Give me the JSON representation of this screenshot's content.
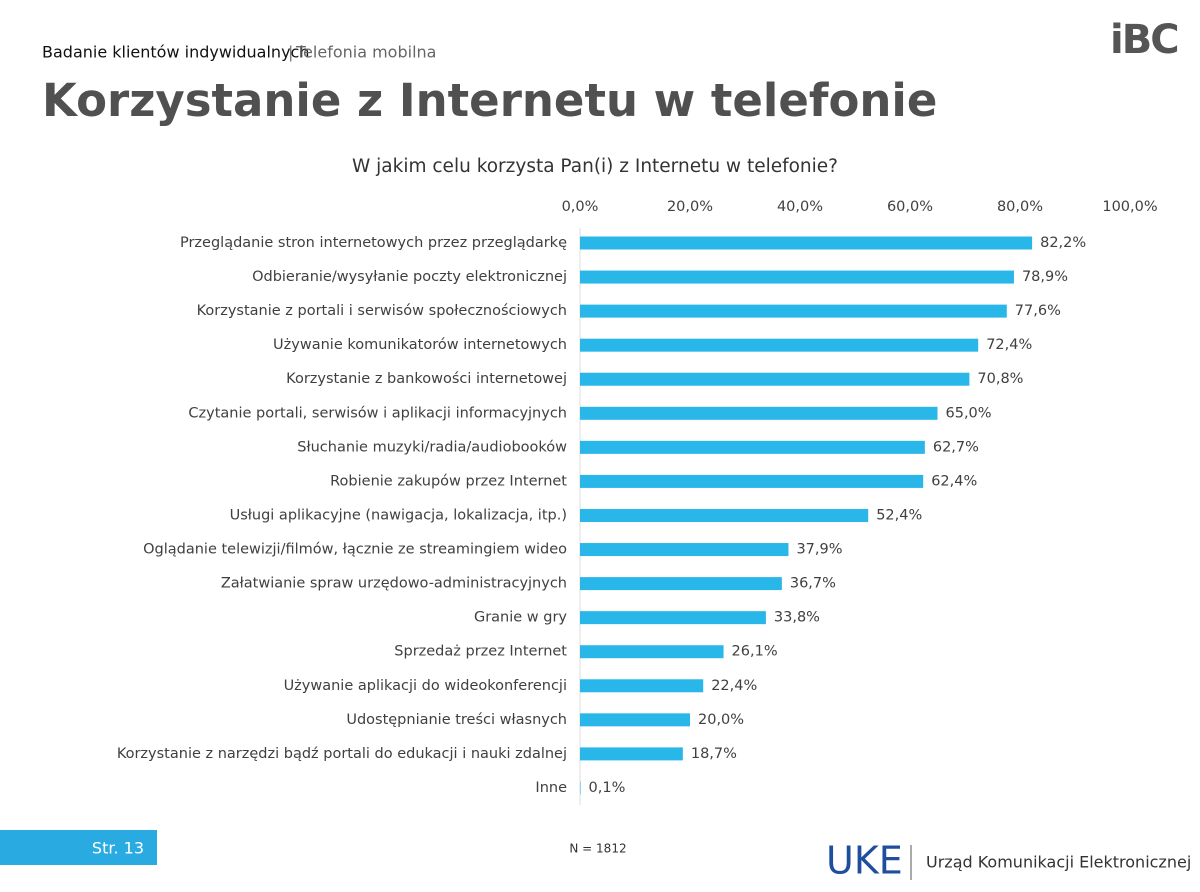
{
  "header": {
    "section": "Badanie klientów indywidualnych",
    "separator": "|",
    "subsection": "Telefonia mobilna",
    "logo": "iBC"
  },
  "chart_data": {
    "type": "hbar",
    "title": "Korzystanie z Internetu w telefonie",
    "subtitle": "W jakim celu korzysta Pan(i) z Internetu w telefonie?",
    "categories": [
      "Przeglądanie stron internetowych przez przeglądarkę",
      "Odbieranie/wysyłanie poczty elektronicznej",
      "Korzystanie z portali i serwisów społecznościowych",
      "Używanie komunikatorów internetowych",
      "Korzystanie z bankowości internetowej",
      "Czytanie portali, serwisów i aplikacji informacyjnych",
      "Słuchanie muzyki/radia/audiobooków",
      "Robienie zakupów przez Internet",
      "Usługi aplikacyjne (nawigacja, lokalizacja, itp.)",
      "Oglądanie telewizji/filmów, łącznie ze streamingiem wideo",
      "Załatwianie spraw urzędowo-administracyjnych",
      "Granie w gry",
      "Sprzedaż przez Internet",
      "Używanie aplikacji do wideokonferencji",
      "Udostępnianie treści własnych",
      "Korzystanie z narzędzi bądź portali do edukacji i nauki zdalnej",
      "Inne"
    ],
    "values": [
      82.2,
      78.9,
      77.6,
      72.4,
      70.8,
      65.0,
      62.7,
      62.4,
      52.4,
      37.9,
      36.7,
      33.8,
      26.1,
      22.4,
      20.0,
      18.7,
      0.1
    ],
    "value_labels": [
      "82,2%",
      "78,9%",
      "77,6%",
      "72,4%",
      "70,8%",
      "65,0%",
      "62,7%",
      "62,4%",
      "52,4%",
      "37,9%",
      "36,7%",
      "33,8%",
      "26,1%",
      "22,4%",
      "20,0%",
      "18,7%",
      "0,1%"
    ],
    "color": "#29b6e8",
    "xlim": [
      0,
      100
    ],
    "xticks": [
      {
        "value": 0,
        "label": "0,0%"
      },
      {
        "value": 20,
        "label": "20,0%"
      },
      {
        "value": 40,
        "label": "40,0%"
      },
      {
        "value": 60,
        "label": "60,0%"
      },
      {
        "value": 80,
        "label": "80,0%"
      },
      {
        "value": 100,
        "label": "100,0%"
      }
    ],
    "grid": false,
    "note": "N = 1812"
  },
  "footer": {
    "page": "Str. 13",
    "logo": "UKE",
    "organization": "Urząd Komunikacji Elektronicznej"
  }
}
